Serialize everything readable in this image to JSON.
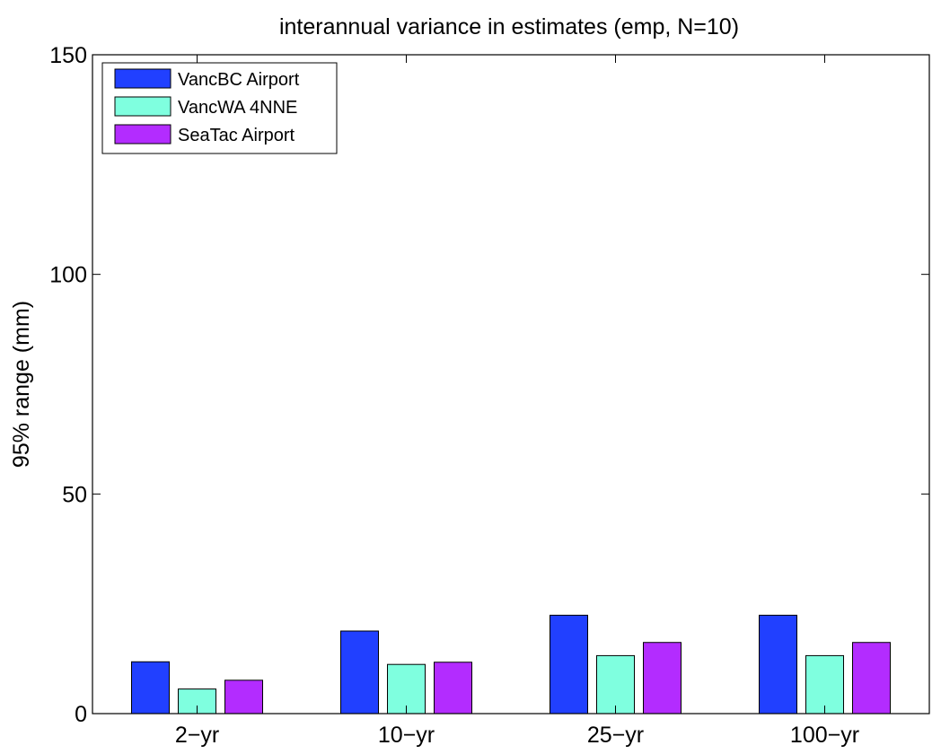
{
  "chart_data": {
    "type": "bar",
    "title": "interannual variance in estimates (emp, N=10)",
    "xlabel": "",
    "ylabel": "95% range (mm)",
    "ylim": [
      0,
      150
    ],
    "yticks": [
      "0",
      "50",
      "100",
      "150"
    ],
    "categories": [
      "2−yr",
      "10−yr",
      "25−yr",
      "100−yr"
    ],
    "series": [
      {
        "name": "VancBC Airport",
        "color": "#2140ff",
        "values": [
          11.8,
          18.8,
          22.4,
          22.4
        ]
      },
      {
        "name": "VancWA 4NNE",
        "color": "#7fffdf",
        "values": [
          5.6,
          11.2,
          13.2,
          13.2
        ]
      },
      {
        "name": "SeaTac Airport",
        "color": "#b32cff",
        "values": [
          7.6,
          11.7,
          16.2,
          16.2
        ]
      }
    ],
    "grid": false,
    "legend_position": "top-left"
  }
}
